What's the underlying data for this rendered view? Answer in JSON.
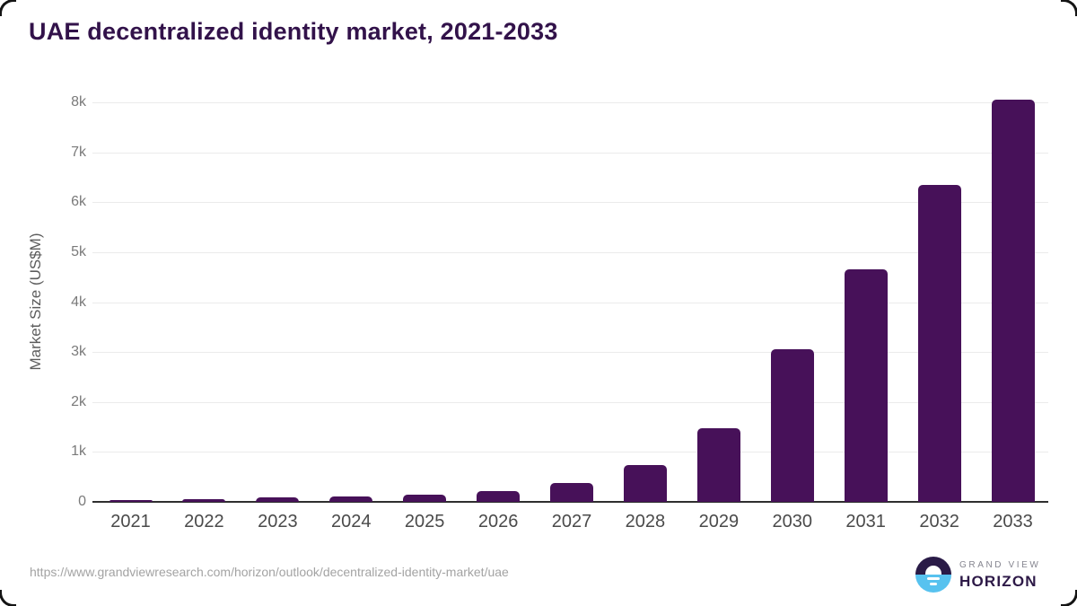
{
  "page": {
    "title": "UAE decentralized identity market, 2021-2033",
    "source_url": "https://www.grandviewresearch.com/horizon/outlook/decentralized-identity-market/uae"
  },
  "logo": {
    "line1": "GRAND VIEW",
    "line2": "HORIZON"
  },
  "chart_data": {
    "type": "bar",
    "title": "UAE decentralized identity market, 2021-2033",
    "categories": [
      "2021",
      "2022",
      "2023",
      "2024",
      "2025",
      "2026",
      "2027",
      "2028",
      "2029",
      "2030",
      "2031",
      "2032",
      "2033"
    ],
    "values": [
      45,
      55,
      85,
      105,
      150,
      225,
      370,
      730,
      1470,
      3050,
      4660,
      6340,
      8060
    ],
    "xlabel": "",
    "ylabel": "Market Size (US$M)",
    "ylim": [
      0,
      8000
    ],
    "ytick_labels": [
      "0",
      "1k",
      "2k",
      "3k",
      "4k",
      "5k",
      "6k",
      "7k",
      "8k"
    ],
    "grid": true,
    "legend": false,
    "colors": {
      "bar": "#471159",
      "title_text": "#32124a",
      "gridline": "#ebebeb",
      "axis_line": "#2f2f2f",
      "x_tick_text": "#4a4a4a",
      "y_tick_text": "#7a7a7a",
      "axis_title_text": "#5c5c5c",
      "source_text": "#a3a3a3",
      "logo_blue": "#57c2ef",
      "logo_dark": "#2a1b47"
    }
  }
}
